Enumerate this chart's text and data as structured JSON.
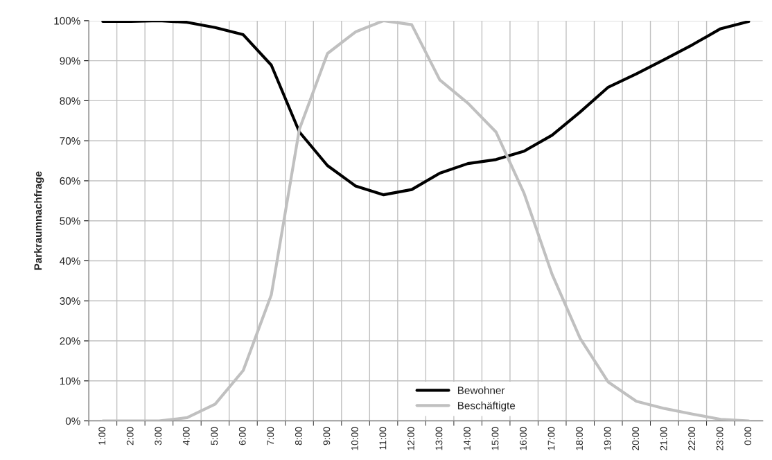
{
  "chart_data": {
    "type": "line",
    "ylabel": "Parkraumnachfrage",
    "categories": [
      "1:00",
      "2:00",
      "3:00",
      "4:00",
      "5:00",
      "6:00",
      "7:00",
      "8:00",
      "9:00",
      "10:00",
      "11:00",
      "12:00",
      "13:00",
      "14:00",
      "15:00",
      "16:00",
      "17:00",
      "18:00",
      "19:00",
      "20:00",
      "21:00",
      "22:00",
      "23:00",
      "0:00"
    ],
    "series": [
      {
        "name": "Bewohner",
        "color": "#000000",
        "values": [
          99.8,
          99.8,
          100,
          99.6,
          98.3,
          96.5,
          88.9,
          72.2,
          63.8,
          58.7,
          56.5,
          57.8,
          61.9,
          64.3,
          65.3,
          67.4,
          71.4,
          77.2,
          83.4,
          86.7,
          90.3,
          94,
          98,
          99.8
        ]
      },
      {
        "name": "Beschäftigte",
        "color": "#c0c0c0",
        "values": [
          0,
          0,
          0,
          0.8,
          4.2,
          12.6,
          31.5,
          72.9,
          91.8,
          97.2,
          100,
          99,
          85.2,
          79.4,
          72.2,
          56.9,
          36.6,
          20.6,
          9.7,
          4.9,
          3.1,
          1.7,
          0.4,
          0
        ]
      }
    ],
    "ylim": [
      0,
      100
    ],
    "yticks": [
      {
        "value": 0,
        "label": "0%"
      },
      {
        "value": 10,
        "label": "10%"
      },
      {
        "value": 20,
        "label": "20%"
      },
      {
        "value": 30,
        "label": "30%"
      },
      {
        "value": 40,
        "label": "40%"
      },
      {
        "value": 50,
        "label": "50%"
      },
      {
        "value": 60,
        "label": "60%"
      },
      {
        "value": 70,
        "label": "70%"
      },
      {
        "value": 80,
        "label": "80%"
      },
      {
        "value": 90,
        "label": "90%"
      },
      {
        "value": 100,
        "label": "100%"
      }
    ],
    "grid": true,
    "legend": "bottom",
    "line_style": "solid",
    "marker": "none"
  }
}
